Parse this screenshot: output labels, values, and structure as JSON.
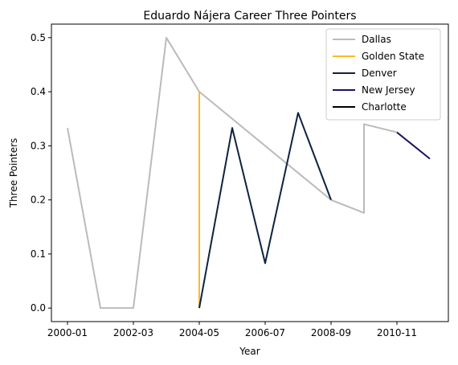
{
  "chart_data": {
    "type": "line",
    "title": "Eduardo Nájera Career Three Pointers",
    "xlabel": "Year",
    "ylabel": "Three Pointers",
    "x_tick_labels": [
      "2000-01",
      "2002-03",
      "2004-05",
      "2006-07",
      "2008-09",
      "2010-11"
    ],
    "y_ticks": [
      0.0,
      0.1,
      0.2,
      0.3,
      0.4,
      0.5
    ],
    "y_tick_labels": [
      "0.0",
      "0.1",
      "0.2",
      "0.3",
      "0.4",
      "0.5"
    ],
    "ylim": [
      -0.025,
      0.525
    ],
    "grid": false,
    "legend_position": "top-right",
    "series": [
      {
        "name": "Dallas",
        "color": "#BBBBBB",
        "points": [
          [
            "2000-01",
            0.333
          ],
          [
            "2001-02",
            0.0
          ],
          [
            "2002-03",
            0.0
          ],
          [
            "2003-04",
            0.5
          ],
          [
            "2004-05",
            0.4
          ],
          [
            "2008-09",
            0.2
          ],
          [
            "2009-10",
            0.176
          ],
          [
            "2009-10",
            0.34
          ],
          [
            "2010-11",
            0.325
          ]
        ]
      },
      {
        "name": "Golden State",
        "color": "#FDB927",
        "points": [
          [
            "2004-05",
            0.4
          ],
          [
            "2004-05",
            0.0
          ]
        ]
      },
      {
        "name": "Denver",
        "color": "#0E2240",
        "points": [
          [
            "2004-05",
            0.0
          ],
          [
            "2005-06",
            0.333
          ],
          [
            "2006-07",
            0.083
          ],
          [
            "2007-08",
            0.361
          ],
          [
            "2008-09",
            0.2
          ]
        ]
      },
      {
        "name": "New Jersey",
        "color": "#1D1160",
        "points": [
          [
            "2010-11",
            0.325
          ],
          [
            "2011-12",
            0.276
          ]
        ]
      },
      {
        "name": "Charlotte",
        "color": "#000000",
        "points": []
      }
    ]
  }
}
